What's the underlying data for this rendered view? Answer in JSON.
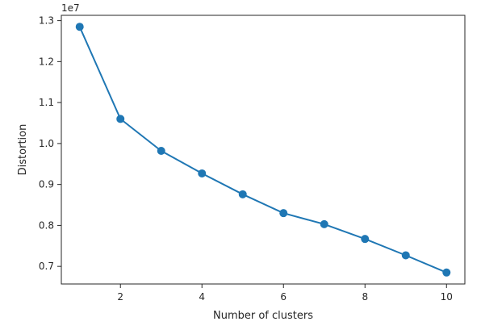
{
  "chart_data": {
    "type": "line",
    "title": "",
    "xlabel": "Number of clusters",
    "ylabel": "Distortion",
    "y_offset_label": "1e7",
    "x": [
      1,
      2,
      3,
      4,
      5,
      6,
      7,
      8,
      9,
      10
    ],
    "series": [
      {
        "values": [
          12850000,
          10600000,
          9820000,
          9270000,
          8760000,
          8300000,
          8030000,
          7670000,
          7270000,
          6850000
        ],
        "color": "#1f77b4",
        "marker": "circle"
      }
    ],
    "xlim": [
      0.55,
      10.45
    ],
    "ylim": [
      6570000,
      13130000
    ],
    "x_ticks": [
      2,
      4,
      6,
      8,
      10
    ],
    "x_tick_labels": [
      "2",
      "4",
      "6",
      "8",
      "10"
    ],
    "y_ticks": [
      7000000,
      8000000,
      9000000,
      10000000,
      11000000,
      12000000,
      13000000
    ],
    "y_tick_labels": [
      "0.7",
      "0.8",
      "0.9",
      "1.0",
      "1.1",
      "1.2",
      "1.3"
    ],
    "grid": false,
    "legend": "none"
  }
}
